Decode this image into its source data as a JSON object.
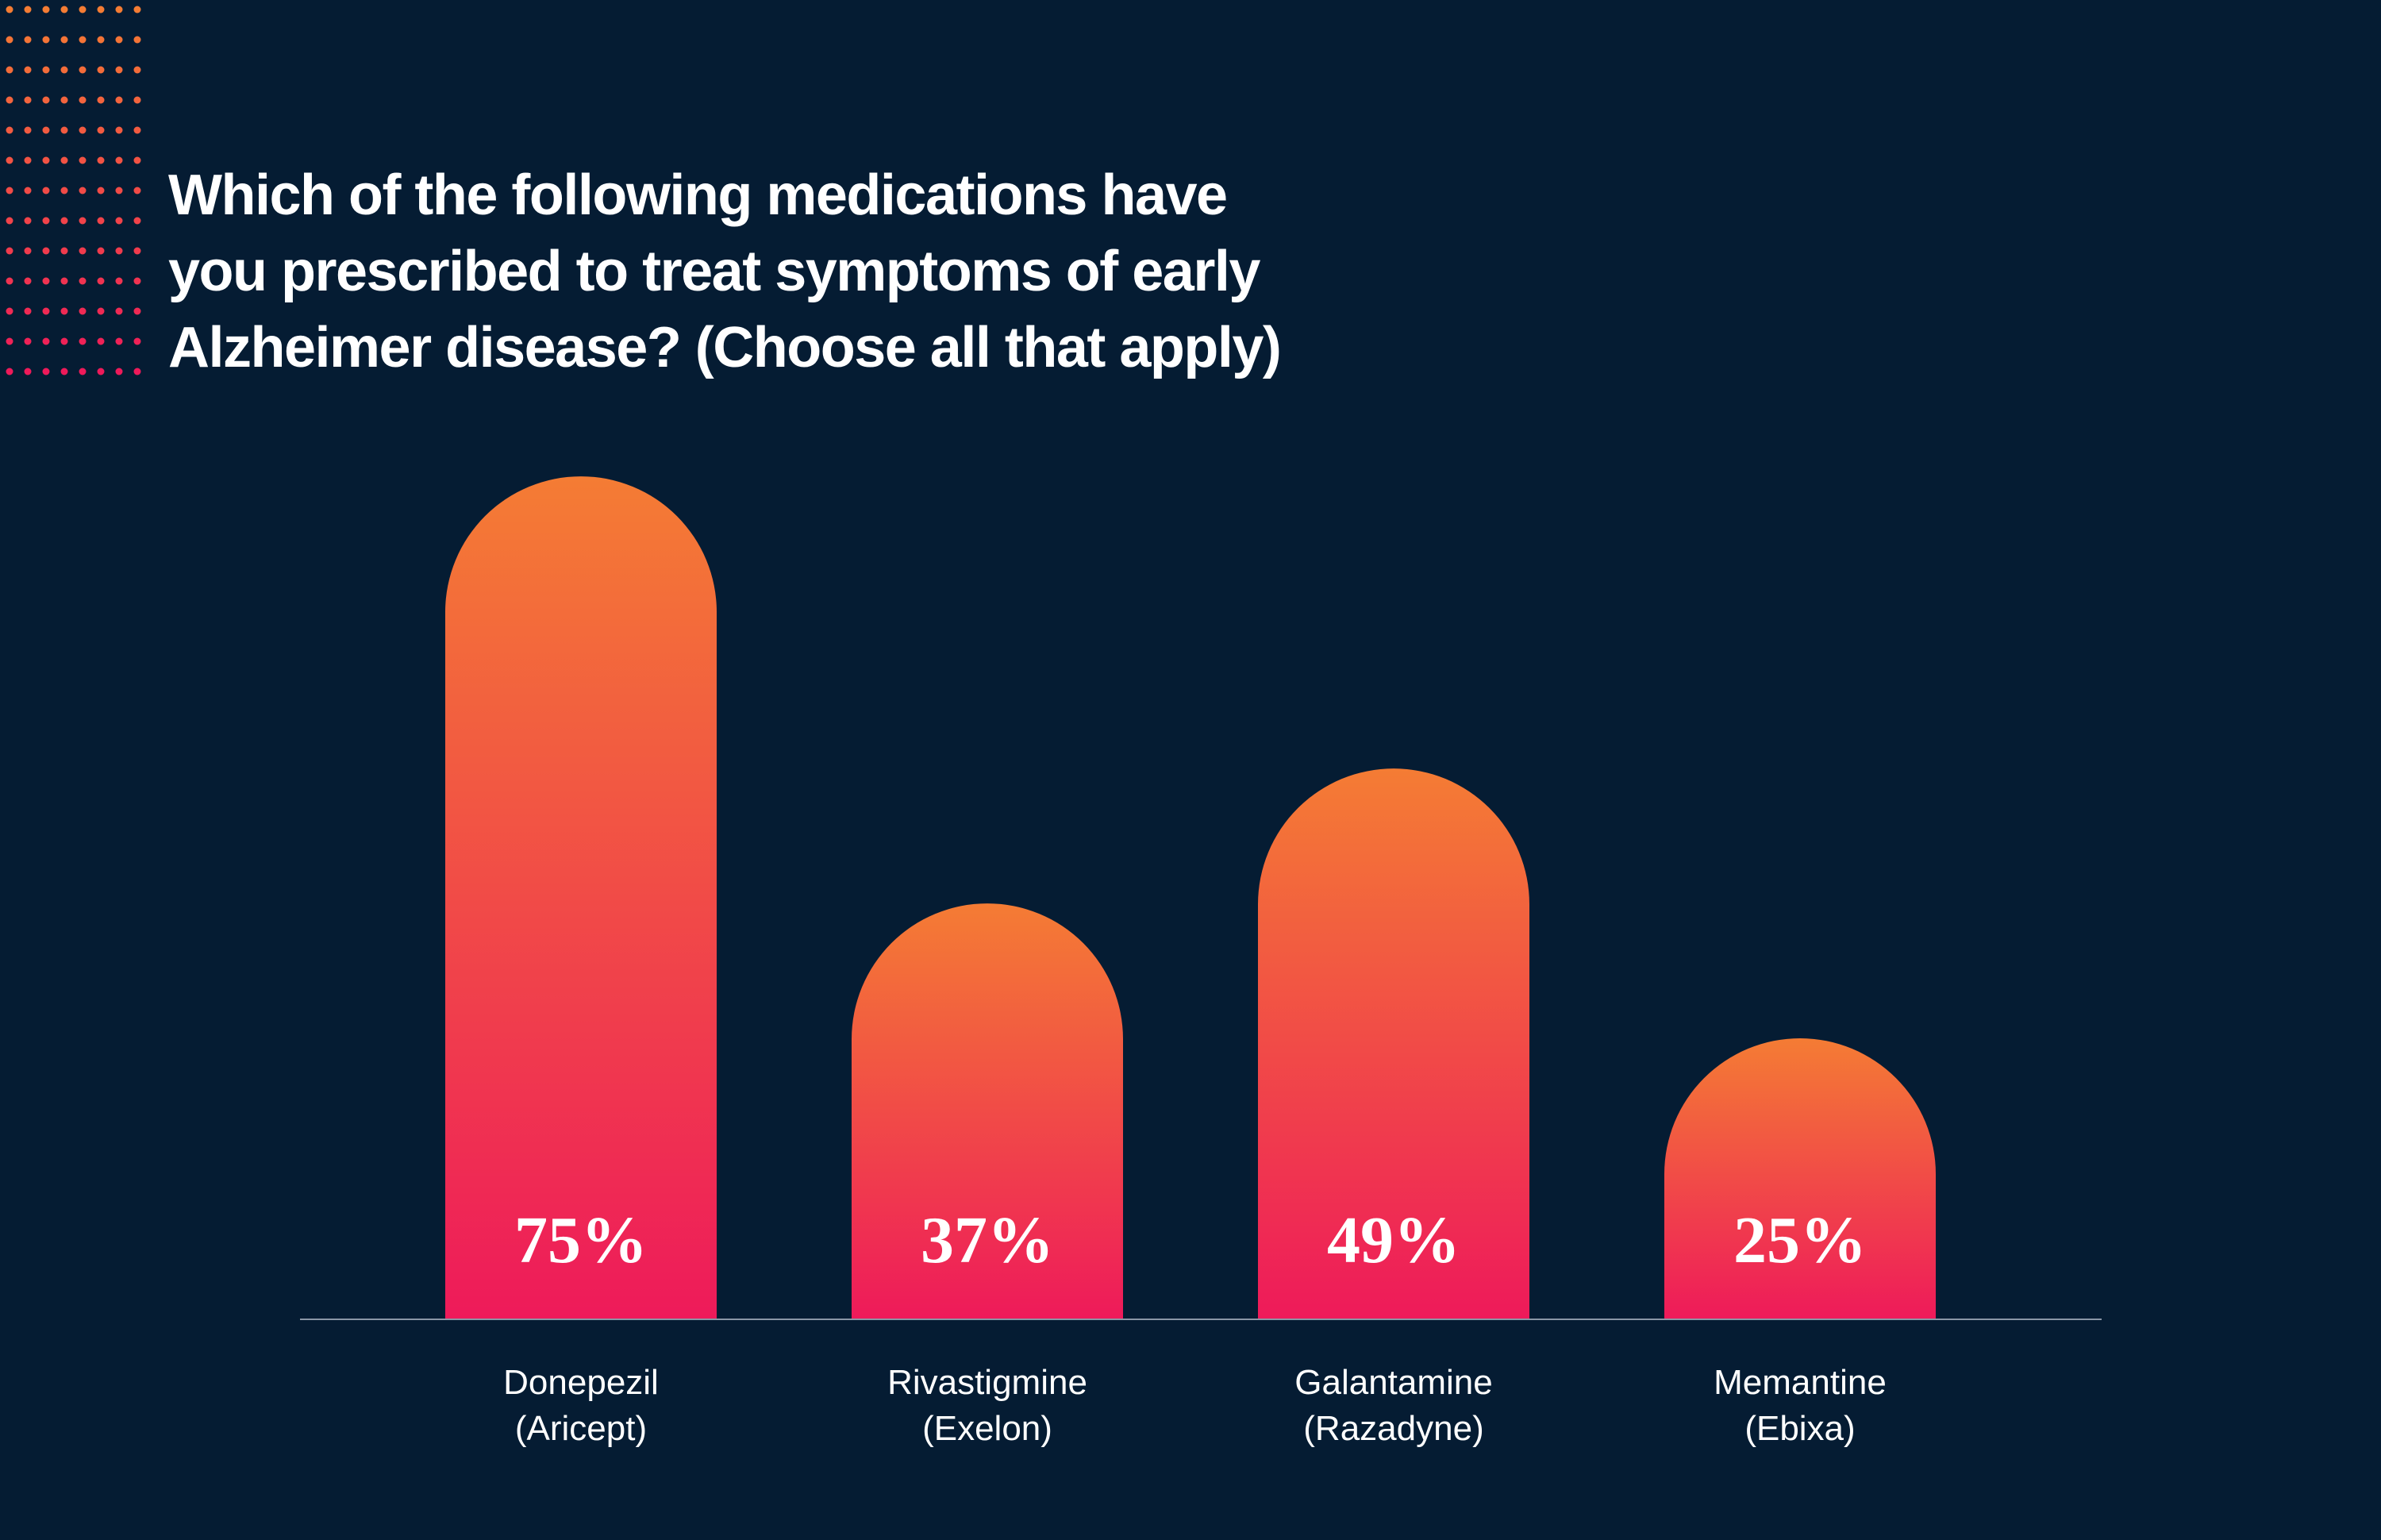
{
  "title_lines": [
    "Which of the following medications have",
    "you prescribed to treat symptoms of early",
    "Alzheimer disease? (Choose all that apply)"
  ],
  "colors": {
    "background": "#051c33",
    "bar_top": "#f47c34",
    "bar_bottom": "#ee1a5a",
    "baseline": "#8a96a6",
    "label_text": "#ffffff",
    "dot_orange": "#f47c34",
    "dot_pink": "#ee1a5a"
  },
  "chart_data": {
    "type": "bar",
    "title": "Which of the following medications have you prescribed to treat symptoms of early Alzheimer disease? (Choose all that apply)",
    "categories": [
      [
        "Donepezil",
        "(Aricept)"
      ],
      [
        "Rivastigmine",
        "(Exelon)"
      ],
      [
        "Galantamine",
        "(Razadyne)"
      ],
      [
        "Memantine",
        "(Ebixa)"
      ]
    ],
    "values": [
      75,
      37,
      49,
      25
    ],
    "value_labels": [
      "75%",
      "37%",
      "49%",
      "25%"
    ],
    "unit": "%",
    "ylim": [
      0,
      100
    ],
    "grid": false,
    "legend": "none"
  }
}
